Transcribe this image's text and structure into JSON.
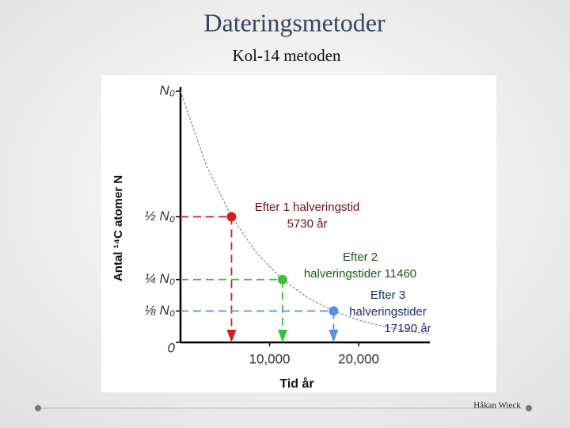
{
  "title": "Dateringsmetoder",
  "subtitle": "Kol-14 metoden",
  "footer": "Håkan Wieck",
  "chart_data": {
    "type": "line",
    "x_label": "Tid år",
    "y_label": "Antal ¹⁴C atomer N",
    "xlim": [
      0,
      28000
    ],
    "ylim": [
      0,
      1
    ],
    "xticks": [
      {
        "value": 10000,
        "label": "10,000"
      },
      {
        "value": 20000,
        "label": "20,000"
      }
    ],
    "yticks": [
      0,
      {
        "value": 0.125,
        "label": "⅛ N₀"
      },
      {
        "value": 0.25,
        "label": "¼ N₀"
      },
      {
        "value": 0.5,
        "label": "½ N₀"
      },
      {
        "value": 1,
        "label": "N₀"
      }
    ],
    "curve": {
      "color": "#888888",
      "x": [
        0,
        2865,
        5730,
        8595,
        11460,
        14325,
        17190,
        20055,
        22920,
        25785,
        28000
      ],
      "values": [
        1,
        0.707,
        0.5,
        0.354,
        0.25,
        0.177,
        0.125,
        0.088,
        0.0625,
        0.044,
        0.034
      ]
    },
    "series": [
      {
        "color": "#d42020",
        "x": [
          5730
        ],
        "values": [
          0.5
        ]
      },
      {
        "color": "#3cbf3c",
        "x": [
          11460
        ],
        "values": [
          0.25
        ]
      },
      {
        "color": "#5b8ee6",
        "x": [
          17190
        ],
        "values": [
          0.125
        ]
      }
    ],
    "annotations": [
      {
        "lines": [
          "Efter 1 halveringstid",
          "5730 år"
        ]
      },
      {
        "lines": [
          "Efter 2",
          "halveringstider 11460"
        ]
      },
      {
        "lines": [
          "Efter 3",
          "halveringstider",
          "17190 år"
        ]
      }
    ]
  }
}
